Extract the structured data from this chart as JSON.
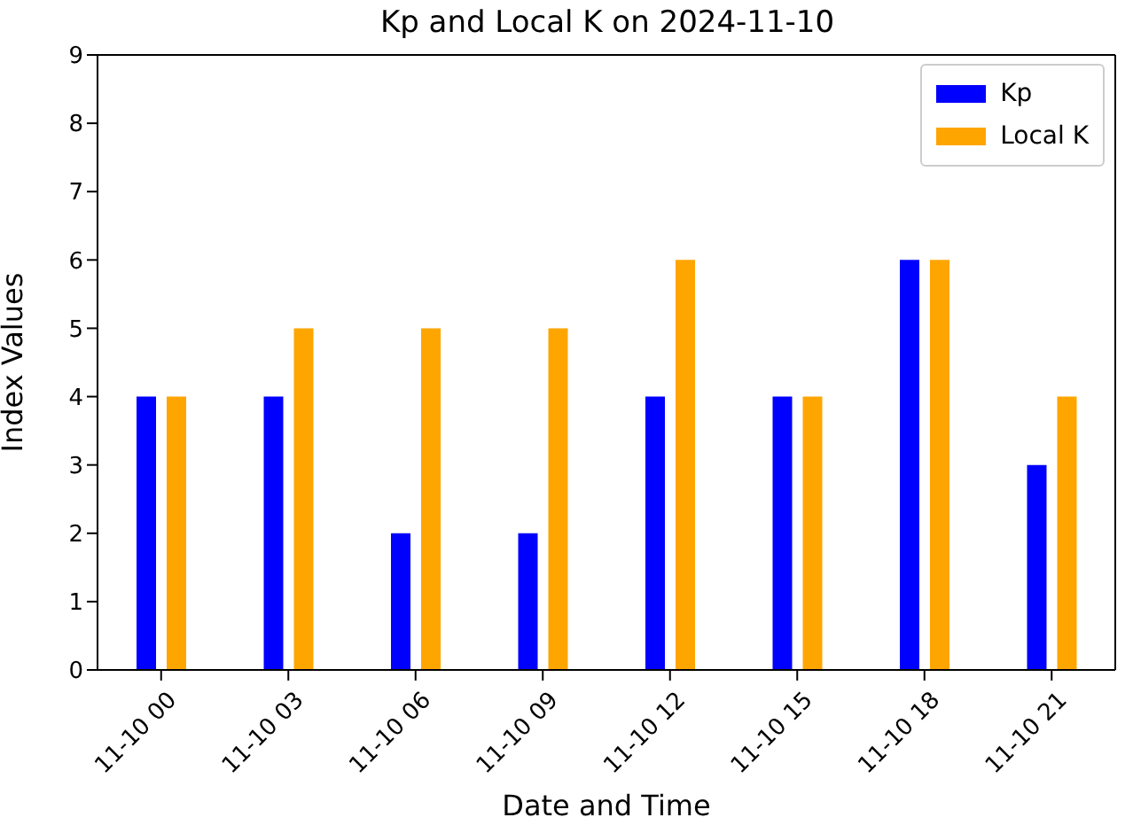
{
  "chart_data": {
    "type": "bar",
    "title": "Kp and Local K on 2024-11-10",
    "xlabel": "Date and Time",
    "ylabel": "Index Values",
    "categories": [
      "11-10 00",
      "11-10 03",
      "11-10 06",
      "11-10 09",
      "11-10 12",
      "11-10 15",
      "11-10 18",
      "11-10 21"
    ],
    "series": [
      {
        "name": "Kp",
        "color": "#0000ff",
        "values": [
          4,
          4,
          2,
          2,
          4,
          4,
          6,
          3
        ]
      },
      {
        "name": "Local K",
        "color": "#ffa500",
        "values": [
          4,
          5,
          5,
          5,
          6,
          4,
          6,
          4
        ]
      }
    ],
    "ylim": [
      0,
      9
    ],
    "yticks": [
      0,
      1,
      2,
      3,
      4,
      5,
      6,
      7,
      8,
      9
    ],
    "legend": "top right"
  }
}
